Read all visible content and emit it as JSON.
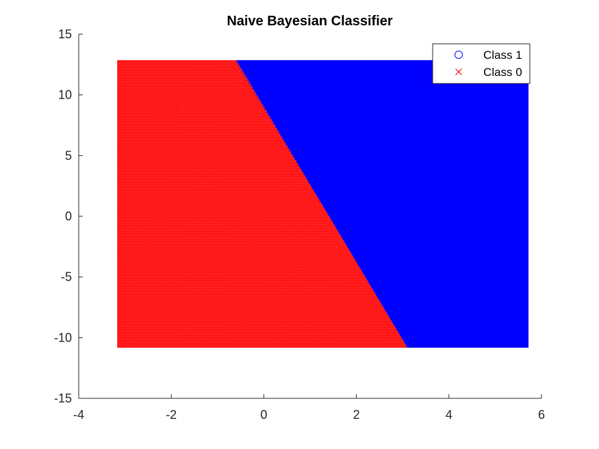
{
  "chart_data": {
    "type": "scatter",
    "title": "Naive Bayesian Classifier",
    "xlabel": "",
    "ylabel": "",
    "xlim": [
      -4,
      6
    ],
    "ylim": [
      -15,
      15
    ],
    "xticks": [
      "-4",
      "-2",
      "0",
      "2",
      "4",
      "6"
    ],
    "yticks": [
      "15",
      "10",
      "5",
      "0",
      "-5",
      "-10",
      "-15"
    ],
    "grid": false,
    "legend_position": "top-right",
    "grid_region": {
      "x_range": [
        -3.14,
        5.66
      ],
      "y_range": [
        -10.6,
        12.7
      ]
    },
    "decision_boundary": [
      {
        "x": -0.6,
        "y": 12.7
      },
      {
        "x": 3.1,
        "y": -10.6
      }
    ],
    "series": [
      {
        "name": "Class 1",
        "marker": "circle",
        "color": "#0000ff",
        "region": "right of boundary"
      },
      {
        "name": "Class 0",
        "marker": "x",
        "color": "#ff0000",
        "region": "left of boundary"
      }
    ]
  }
}
